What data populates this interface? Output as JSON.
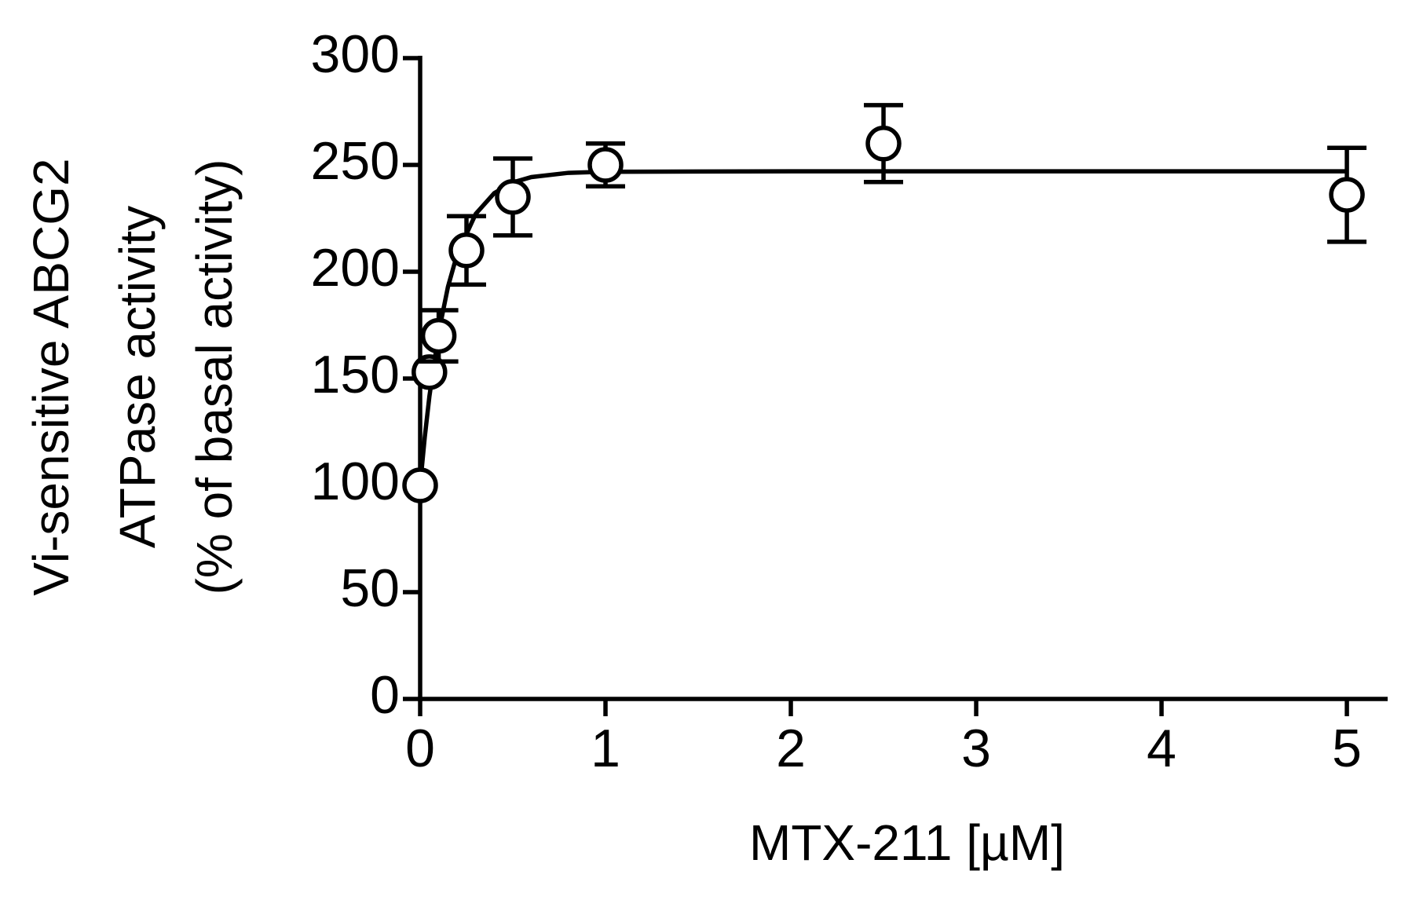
{
  "chart_data": {
    "type": "scatter",
    "x_label": "MTX-211 [µM]",
    "y_label": [
      "Vi-sensitive ABCG2",
      "ATPase activity",
      "(% of basal activity)"
    ],
    "x": [
      0,
      0.05,
      0.1,
      0.25,
      0.5,
      1,
      2.5,
      5
    ],
    "series": [
      {
        "color": "#000000",
        "values": [
          100,
          153,
          170,
          210,
          235,
          250,
          260,
          236
        ],
        "errors": [
          0,
          0,
          12,
          16,
          18,
          10,
          18,
          22
        ]
      }
    ],
    "fit": {
      "x": [
        0,
        0.025,
        0.05,
        0.1,
        0.15,
        0.2,
        0.3,
        0.4,
        0.5,
        0.6,
        0.8,
        1,
        2,
        5
      ],
      "values": [
        100,
        122.6,
        141.7,
        171.5,
        192.9,
        208.3,
        227.1,
        236.8,
        241.8,
        244.3,
        246.3,
        246.8,
        247,
        247
      ]
    },
    "xlim": [
      0,
      5.22
    ],
    "ylim": [
      0,
      300
    ],
    "xticks": [
      0,
      1,
      2,
      3,
      4,
      5
    ],
    "yticks": [
      0,
      50,
      100,
      150,
      200,
      250,
      300
    ]
  }
}
